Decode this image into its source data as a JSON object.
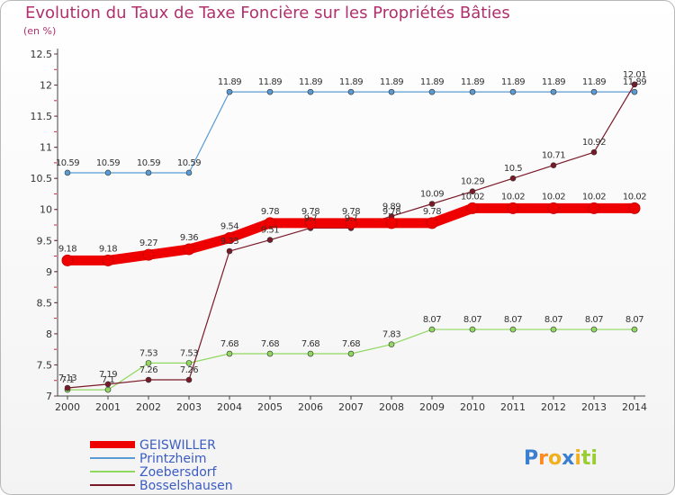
{
  "header": {
    "title": "Evolution du Taux de Taxe Foncière sur les Propriétés Bâties",
    "unit": "(en %)"
  },
  "brand": {
    "logo_text": "Proxiti"
  },
  "chart_data": {
    "type": "line",
    "title": "Evolution du Taux de Taxe Foncière sur les Propriétés Bâties",
    "ylabel": "(en %)",
    "xlabel": "",
    "ylim": [
      7,
      12.5
    ],
    "yticks": [
      "7",
      "7.5",
      "8",
      "8.5",
      "9",
      "9.5",
      "10",
      "10.5",
      "11",
      "11.5",
      "12",
      "12.5"
    ],
    "x": [
      "2000",
      "2001",
      "2002",
      "2003",
      "2004",
      "2005",
      "2006",
      "2007",
      "2008",
      "2009",
      "2010",
      "2011",
      "2012",
      "2013",
      "2014"
    ],
    "series": [
      {
        "name": "Printzheim",
        "color": "#5a9bd5",
        "values": [
          10.59,
          10.59,
          10.59,
          10.59,
          11.89,
          11.89,
          11.89,
          11.89,
          11.89,
          11.89,
          11.89,
          11.89,
          11.89,
          11.89,
          11.89
        ],
        "labels": [
          "10.59",
          "10.59",
          "10.59",
          "10.59",
          "11.89",
          "11.89",
          "11.89",
          "11.89",
          "11.89",
          "11.89",
          "11.89",
          "11.89",
          "11.89",
          "11.89",
          "11.89"
        ]
      },
      {
        "name": "Zoebersdorf",
        "color": "#90d860",
        "values": [
          7.1,
          7.1,
          7.53,
          7.53,
          7.68,
          7.68,
          7.68,
          7.68,
          7.83,
          8.07,
          8.07,
          8.07,
          8.07,
          8.07,
          8.07
        ],
        "labels": [
          "7.1",
          "7.1",
          "7.53",
          "7.53",
          "7.68",
          "7.68",
          "7.68",
          "7.68",
          "7.83",
          "8.07",
          "8.07",
          "8.07",
          "8.07",
          "8.07",
          "8.07"
        ]
      },
      {
        "name": "Bosselshausen",
        "color": "#7a1a28",
        "values": [
          7.13,
          7.19,
          7.26,
          7.26,
          9.33,
          9.51,
          9.7,
          9.7,
          9.89,
          10.09,
          10.29,
          10.5,
          10.71,
          10.92,
          12.01
        ],
        "labels": [
          "7.13",
          "7.19",
          "7.26",
          "7.26",
          "9.33",
          "9.51",
          "9.7",
          "9.7",
          "9.89",
          "10.09",
          "10.29",
          "10.5",
          "10.71",
          "10.92",
          "12.01"
        ]
      },
      {
        "name": "GEISWILLER",
        "color": "#ee0000",
        "values": [
          9.18,
          9.18,
          9.27,
          9.36,
          9.54,
          9.78,
          9.78,
          9.78,
          9.78,
          9.78,
          10.02,
          10.02,
          10.02,
          10.02,
          10.02
        ],
        "labels": [
          "9.18",
          "9.18",
          "9.27",
          "9.36",
          "9.54",
          "9.78",
          "9.78",
          "9.78",
          "9.78",
          "9.78",
          "10.02",
          "10.02",
          "10.02",
          "10.02",
          "10.02"
        ]
      }
    ],
    "legend": [
      "GEISWILLER",
      "Printzheim",
      "Zoebersdorf",
      "Bosselshausen"
    ],
    "legend_position": "bottom-left",
    "grid": false
  }
}
